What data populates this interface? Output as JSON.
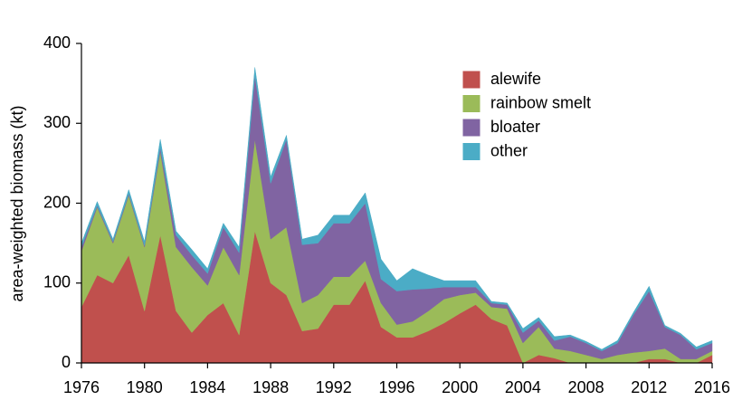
{
  "chart_data": {
    "type": "stacked-area",
    "y_label": "area-weighted biomass (kt)",
    "x": [
      1976,
      1977,
      1978,
      1979,
      1980,
      1981,
      1982,
      1983,
      1984,
      1985,
      1986,
      1987,
      1988,
      1989,
      1990,
      1991,
      1992,
      1993,
      1994,
      1995,
      1996,
      1997,
      1998,
      1999,
      2000,
      2001,
      2002,
      2003,
      2004,
      2005,
      2006,
      2007,
      2008,
      2009,
      2010,
      2011,
      2012,
      2013,
      2014,
      2015,
      2016
    ],
    "series": [
      {
        "name": "alewife",
        "color": "#c0504d",
        "values": [
          70,
          110,
          100,
          135,
          65,
          160,
          65,
          38,
          60,
          75,
          35,
          165,
          100,
          85,
          40,
          43,
          73,
          73,
          103,
          45,
          32,
          32,
          40,
          50,
          62,
          73,
          55,
          47,
          0,
          10,
          6,
          0,
          0,
          0,
          0,
          0,
          5,
          5,
          0,
          0,
          10
        ]
      },
      {
        "name": "rainbow smelt",
        "color": "#9bbb59",
        "values": [
          70,
          85,
          50,
          75,
          80,
          105,
          80,
          82,
          37,
          70,
          75,
          115,
          55,
          85,
          35,
          42,
          35,
          35,
          25,
          30,
          16,
          20,
          25,
          30,
          23,
          15,
          15,
          21,
          25,
          35,
          12,
          15,
          10,
          5,
          10,
          13,
          10,
          13,
          5,
          5,
          5
        ]
      },
      {
        "name": "bloater",
        "color": "#8064a2",
        "values": [
          5,
          2,
          2,
          2,
          2,
          5,
          15,
          15,
          15,
          25,
          28,
          80,
          70,
          110,
          73,
          65,
          67,
          67,
          72,
          30,
          42,
          40,
          28,
          15,
          10,
          7,
          5,
          5,
          13,
          8,
          10,
          18,
          15,
          10,
          15,
          47,
          75,
          27,
          30,
          12,
          10
        ]
      },
      {
        "name": "other",
        "color": "#4bacc6",
        "values": [
          5,
          5,
          3,
          5,
          5,
          10,
          5,
          7,
          6,
          5,
          7,
          10,
          8,
          5,
          7,
          10,
          10,
          10,
          13,
          25,
          13,
          26,
          17,
          8,
          8,
          8,
          2,
          2,
          5,
          4,
          5,
          2,
          2,
          2,
          3,
          3,
          6,
          2,
          2,
          3,
          3
        ]
      }
    ],
    "xlim": [
      1976,
      2016
    ],
    "xticks": [
      1976,
      1980,
      1984,
      1988,
      1992,
      1996,
      2000,
      2004,
      2008,
      2012,
      2016
    ],
    "ylim": [
      0,
      400
    ],
    "yticks": [
      0,
      100,
      200,
      300,
      400
    ],
    "grid": false,
    "legend": "upper-right"
  }
}
